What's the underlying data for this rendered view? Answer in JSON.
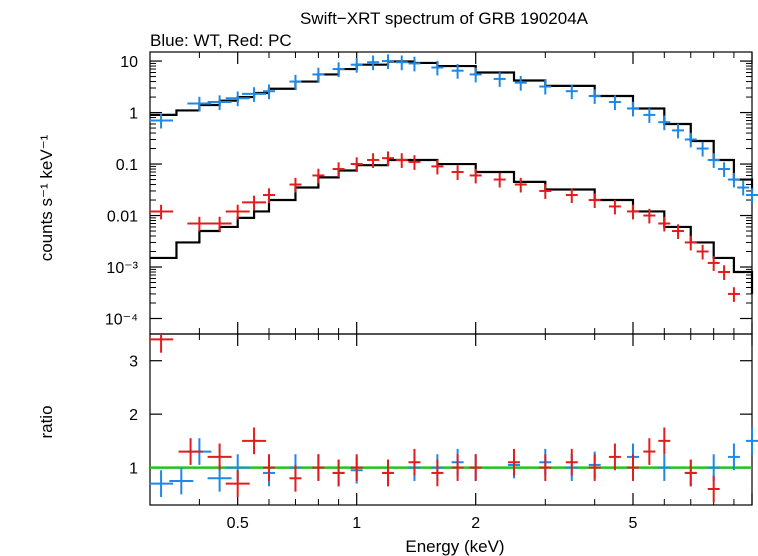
{
  "chart_data": [
    {
      "type": "scatter",
      "title": "Swift−XRT spectrum of GRB 190204A",
      "subtitle": "Blue: WT, Red: PC",
      "xlabel": "Energy (keV)",
      "ylabel": "counts s⁻¹ keV⁻¹",
      "xscale": "log",
      "yscale": "log",
      "xlim": [
        0.3,
        10
      ],
      "ylim": [
        5e-05,
        15
      ],
      "x_tick_labels": [
        "0.5",
        "1",
        "2",
        "5"
      ],
      "y_tick_labels": [
        "10",
        "1",
        "0.1",
        "0.01",
        "10⁻³",
        "10⁻⁴"
      ],
      "y_tick_values": [
        10,
        1,
        0.1,
        0.01,
        0.001,
        0.0001
      ],
      "series": [
        {
          "color": "#1e88e5",
          "x": [
            0.32,
            0.4,
            0.45,
            0.5,
            0.55,
            0.6,
            0.7,
            0.8,
            0.9,
            1.0,
            1.1,
            1.2,
            1.3,
            1.4,
            1.6,
            1.8,
            2.0,
            2.3,
            2.6,
            3.0,
            3.5,
            4.0,
            4.5,
            5.0,
            5.5,
            6.0,
            6.5,
            7.0,
            7.5,
            8.0,
            8.5,
            9.0,
            9.5,
            10.0
          ],
          "y": [
            0.7,
            1.5,
            1.6,
            1.9,
            2.3,
            2.6,
            4.0,
            5.5,
            7.0,
            8.5,
            9.5,
            10.0,
            9.5,
            9.0,
            7.5,
            6.5,
            5.5,
            4.5,
            3.8,
            3.2,
            2.6,
            2.1,
            1.6,
            1.2,
            0.9,
            0.65,
            0.45,
            0.3,
            0.2,
            0.12,
            0.08,
            0.05,
            0.035,
            0.025
          ]
        },
        {
          "color": "#e11d1d",
          "x": [
            0.32,
            0.4,
            0.45,
            0.5,
            0.55,
            0.6,
            0.7,
            0.8,
            0.9,
            1.0,
            1.1,
            1.2,
            1.3,
            1.4,
            1.6,
            1.8,
            2.0,
            2.3,
            2.6,
            3.0,
            3.5,
            4.0,
            4.5,
            5.0,
            5.5,
            6.0,
            6.5,
            7.0,
            7.5,
            8.0,
            8.5,
            9.0
          ],
          "y": [
            0.012,
            0.007,
            0.007,
            0.012,
            0.018,
            0.025,
            0.04,
            0.06,
            0.08,
            0.1,
            0.12,
            0.13,
            0.12,
            0.11,
            0.09,
            0.07,
            0.06,
            0.05,
            0.04,
            0.03,
            0.025,
            0.02,
            0.015,
            0.012,
            0.01,
            0.007,
            0.005,
            0.003,
            0.002,
            0.0012,
            0.0008,
            0.0003
          ]
        }
      ],
      "model": {
        "color": "#000000",
        "x": [
          0.3,
          0.35,
          0.4,
          0.45,
          0.5,
          0.55,
          0.6,
          0.7,
          0.8,
          0.9,
          1.0,
          1.2,
          1.4,
          1.6,
          2.0,
          2.5,
          3.0,
          4.0,
          5.0,
          6.0,
          7.0,
          8.0,
          9.0,
          10.0
        ],
        "y_wt": [
          0.9,
          1.1,
          1.4,
          1.7,
          2.0,
          2.4,
          2.9,
          4.0,
          5.5,
          7.0,
          8.5,
          9.8,
          9.2,
          8.0,
          6.0,
          4.2,
          3.3,
          2.1,
          1.2,
          0.6,
          0.28,
          0.12,
          0.05,
          0.03
        ],
        "y_pc": [
          0.0015,
          0.003,
          0.005,
          0.006,
          0.009,
          0.012,
          0.02,
          0.035,
          0.055,
          0.075,
          0.095,
          0.12,
          0.12,
          0.1,
          0.07,
          0.045,
          0.032,
          0.02,
          0.012,
          0.006,
          0.003,
          0.0015,
          0.0008,
          0.0003
        ]
      }
    },
    {
      "type": "scatter",
      "xlabel": "Energy (keV)",
      "ylabel": "ratio",
      "xscale": "log",
      "xlim": [
        0.3,
        10
      ],
      "ylim": [
        0.3,
        3.5
      ],
      "y_tick_values": [
        1,
        2,
        3
      ],
      "y_tick_labels": [
        "1",
        "2",
        "3"
      ],
      "reference_line": {
        "y": 1,
        "color": "#22c322"
      },
      "series": [
        {
          "color": "#1e88e5",
          "x": [
            0.32,
            0.36,
            0.4,
            0.45,
            0.5,
            0.6,
            0.7,
            0.8,
            0.9,
            1.0,
            1.2,
            1.4,
            1.6,
            1.8,
            2.0,
            2.5,
            3.0,
            3.5,
            4.0,
            5.0,
            6.0,
            7.0,
            8.0,
            9.0,
            10.0
          ],
          "y": [
            0.7,
            0.75,
            1.3,
            0.8,
            1.0,
            0.9,
            1.0,
            1.0,
            0.9,
            0.95,
            0.9,
            1.0,
            1.0,
            1.1,
            1.0,
            1.05,
            1.1,
            1.0,
            1.05,
            1.2,
            1.0,
            0.9,
            1.0,
            1.2,
            1.5
          ]
        },
        {
          "color": "#e11d1d",
          "x": [
            0.32,
            0.38,
            0.45,
            0.5,
            0.55,
            0.6,
            0.7,
            0.8,
            0.9,
            1.0,
            1.2,
            1.4,
            1.6,
            1.8,
            2.0,
            2.5,
            3.0,
            3.5,
            4.0,
            4.5,
            5.0,
            5.5,
            6.0,
            7.0,
            8.0
          ],
          "y": [
            3.4,
            1.3,
            1.2,
            0.7,
            1.5,
            1.0,
            0.8,
            1.0,
            0.9,
            1.0,
            0.9,
            1.1,
            0.9,
            1.0,
            1.0,
            1.1,
            1.0,
            1.1,
            1.0,
            1.2,
            1.0,
            1.3,
            1.5,
            0.9,
            0.6
          ]
        }
      ]
    }
  ]
}
